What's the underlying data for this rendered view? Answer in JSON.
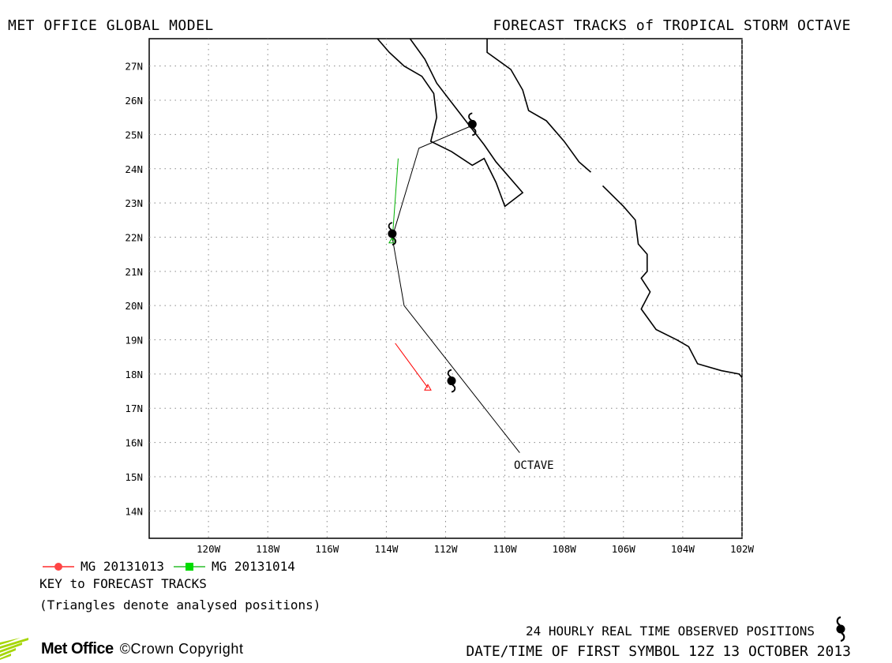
{
  "header": {
    "left_title": "MET OFFICE GLOBAL MODEL",
    "right_title": "FORECAST TRACKS of TROPICAL STORM OCTAVE"
  },
  "map": {
    "lon_range": [
      -122,
      -102
    ],
    "lat_range": [
      13.2,
      27.8
    ],
    "lon_ticks": [
      -120,
      -118,
      -116,
      -114,
      -112,
      -110,
      -108,
      -106,
      -104,
      -102
    ],
    "lon_tick_labels": [
      "120W",
      "118W",
      "116W",
      "114W",
      "112W",
      "110W",
      "108W",
      "106W",
      "104W",
      "102W"
    ],
    "lat_ticks": [
      14,
      15,
      16,
      17,
      18,
      19,
      20,
      21,
      22,
      23,
      24,
      25,
      26,
      27
    ],
    "lat_tick_labels": [
      "14N",
      "15N",
      "16N",
      "17N",
      "18N",
      "19N",
      "20N",
      "21N",
      "22N",
      "23N",
      "24N",
      "25N",
      "26N",
      "27N"
    ],
    "grid": "dotted",
    "storm_label": "OCTAVE",
    "colors": {
      "observed": "#000000",
      "forecast_20131013": "#ff0000",
      "forecast_20131014": "#00b000",
      "coast": "#000000"
    },
    "observed_track": [
      [
        -109.5,
        15.7
      ],
      [
        -113.4,
        20.0
      ],
      [
        -113.8,
        22.0
      ],
      [
        -112.9,
        24.6
      ],
      [
        -111.0,
        25.3
      ]
    ],
    "observed_symbols": [
      [
        -111.8,
        17.8
      ],
      [
        -113.8,
        22.1
      ],
      [
        -111.1,
        25.3
      ]
    ],
    "forecast_tracks": [
      {
        "name": "MG 20131013",
        "color": "#ff0000",
        "points": [
          [
            -112.6,
            17.6
          ],
          [
            -113.7,
            18.9
          ]
        ]
      },
      {
        "name": "MG 20131014",
        "color": "#00b000",
        "points": [
          [
            -113.8,
            21.9
          ],
          [
            -113.6,
            24.3
          ]
        ]
      }
    ],
    "coastlines": [
      [
        [
          -114.3,
          27.8
        ],
        [
          -113.9,
          27.4
        ],
        [
          -113.4,
          27.0
        ],
        [
          -112.8,
          26.7
        ],
        [
          -112.4,
          26.2
        ],
        [
          -112.3,
          25.5
        ],
        [
          -112.5,
          24.8
        ],
        [
          -111.8,
          24.5
        ],
        [
          -111.1,
          24.1
        ],
        [
          -110.7,
          24.3
        ],
        [
          -110.3,
          23.6
        ],
        [
          -110.0,
          22.9
        ],
        [
          -109.4,
          23.3
        ],
        [
          -110.3,
          24.2
        ],
        [
          -110.7,
          24.7
        ],
        [
          -111.5,
          25.6
        ],
        [
          -112.3,
          26.5
        ],
        [
          -112.7,
          27.2
        ],
        [
          -113.2,
          27.8
        ]
      ],
      [
        [
          -110.6,
          27.8
        ],
        [
          -110.6,
          27.4
        ],
        [
          -109.8,
          26.9
        ],
        [
          -109.4,
          26.3
        ],
        [
          -109.2,
          25.7
        ],
        [
          -108.6,
          25.4
        ],
        [
          -108.0,
          24.8
        ],
        [
          -107.5,
          24.2
        ],
        [
          -107.1,
          23.9
        ]
      ],
      [
        [
          -106.7,
          23.5
        ],
        [
          -106.0,
          22.9
        ],
        [
          -105.6,
          22.5
        ],
        [
          -105.5,
          21.8
        ],
        [
          -105.2,
          21.5
        ],
        [
          -105.2,
          21.0
        ],
        [
          -105.4,
          20.8
        ],
        [
          -105.1,
          20.4
        ],
        [
          -105.4,
          19.9
        ],
        [
          -104.9,
          19.3
        ],
        [
          -104.2,
          19.0
        ],
        [
          -103.8,
          18.8
        ],
        [
          -103.5,
          18.3
        ],
        [
          -102.7,
          18.1
        ],
        [
          -102.1,
          18.0
        ],
        [
          -101.9,
          17.8
        ]
      ]
    ]
  },
  "key": {
    "item1_label": "MG 20131013",
    "item2_label": "MG 20131014",
    "title": "KEY to FORECAST TRACKS",
    "note": "(Triangles denote analysed positions)"
  },
  "footer": {
    "observed_label": "24 HOURLY REAL TIME OBSERVED POSITIONS",
    "first_symbol": "DATE/TIME OF FIRST SYMBOL 12Z 13 OCTOBER 2013",
    "logo_text": "Met Office",
    "copyright": "©Crown Copyright"
  }
}
